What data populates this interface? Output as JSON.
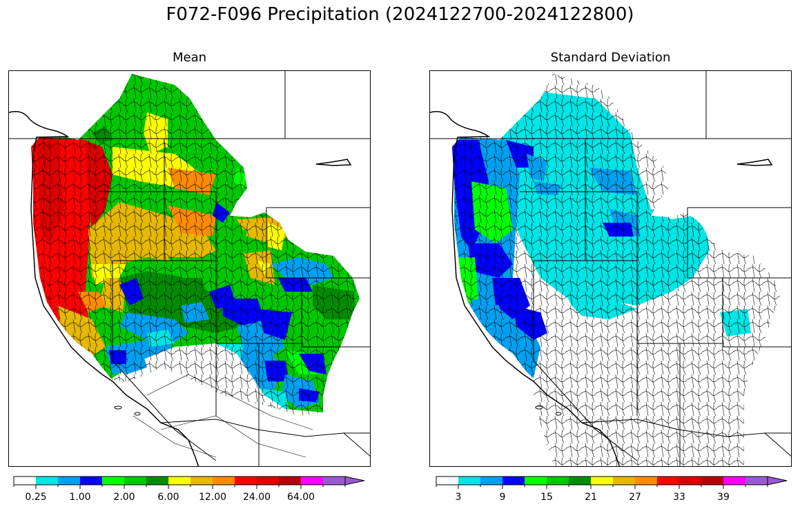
{
  "figure": {
    "suptitle": "F072-F096 Precipitation (2024122700-2024122800)"
  },
  "panels": [
    {
      "title": "Mean",
      "colorbar": {
        "colors": [
          "#ffffff",
          "#00e5e5",
          "#00a0f0",
          "#0000ff",
          "#00ff00",
          "#00c800",
          "#008c00",
          "#ffff00",
          "#e6b800",
          "#ff8c00",
          "#ff0000",
          "#dc0000",
          "#b40000",
          "#ff00ff",
          "#9b59d0"
        ],
        "tick_labels": [
          "0.25",
          "1.00",
          "2.00",
          "6.00",
          "12.00",
          "24.00",
          "64.00"
        ]
      }
    },
    {
      "title": "Standard Deviation",
      "colorbar": {
        "colors": [
          "#ffffff",
          "#00e5e5",
          "#00a0f0",
          "#0000ff",
          "#00ff00",
          "#00c800",
          "#008c00",
          "#ffff00",
          "#e6b800",
          "#ff8c00",
          "#ff0000",
          "#dc0000",
          "#b40000",
          "#ff00ff",
          "#9b59d0"
        ],
        "tick_labels": [
          "3",
          "9",
          "15",
          "21",
          "27",
          "33",
          "39"
        ]
      }
    }
  ]
}
